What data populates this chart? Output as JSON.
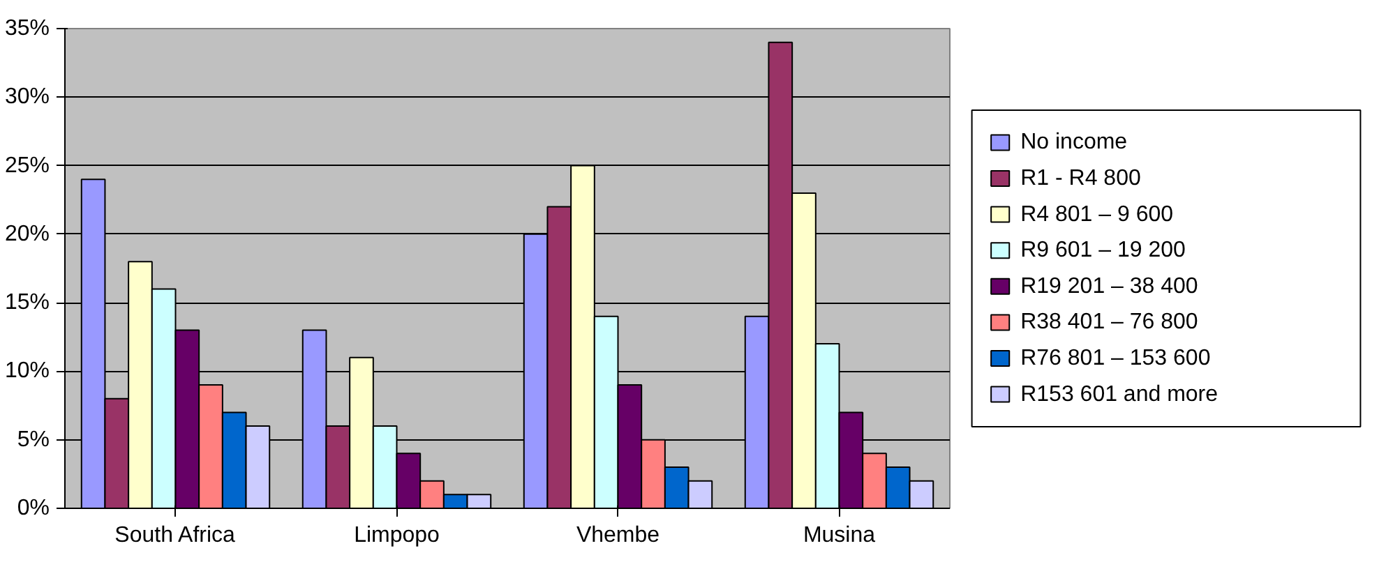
{
  "chart_data": {
    "type": "bar",
    "categories": [
      "South Africa",
      "Limpopo",
      "Vhembe",
      "Musina"
    ],
    "series": [
      {
        "name": "No income",
        "color": "#9999ff",
        "values": [
          24,
          13,
          20,
          14
        ]
      },
      {
        "name": "R1 - R4 800",
        "color": "#993366",
        "values": [
          8,
          6,
          22,
          34
        ]
      },
      {
        "name": "R4 801 – 9 600",
        "color": "#ffffcc",
        "values": [
          18,
          11,
          25,
          23
        ]
      },
      {
        "name": "R9 601 – 19 200",
        "color": "#ccffff",
        "values": [
          16,
          6,
          14,
          12
        ]
      },
      {
        "name": "R19 201 – 38 400",
        "color": "#660066",
        "values": [
          13,
          4,
          9,
          7
        ]
      },
      {
        "name": "R38 401 – 76 800",
        "color": "#ff8080",
        "values": [
          9,
          2,
          5,
          4
        ]
      },
      {
        "name": "R76 801 – 153 600",
        "color": "#0066cc",
        "values": [
          7,
          1,
          3,
          3
        ]
      },
      {
        "name": "R153 601 and more",
        "color": "#ccccff",
        "values": [
          6,
          1,
          2,
          2
        ]
      }
    ],
    "ylim": [
      0,
      35
    ],
    "yticks": [
      {
        "value": 0,
        "label": "0%"
      },
      {
        "value": 5,
        "label": "5%"
      },
      {
        "value": 10,
        "label": "10%"
      },
      {
        "value": 15,
        "label": "15%"
      },
      {
        "value": 20,
        "label": "20%"
      },
      {
        "value": 25,
        "label": "25%"
      },
      {
        "value": 30,
        "label": "30%"
      },
      {
        "value": 35,
        "label": "35%"
      }
    ],
    "grid": "y",
    "legend": "right"
  }
}
